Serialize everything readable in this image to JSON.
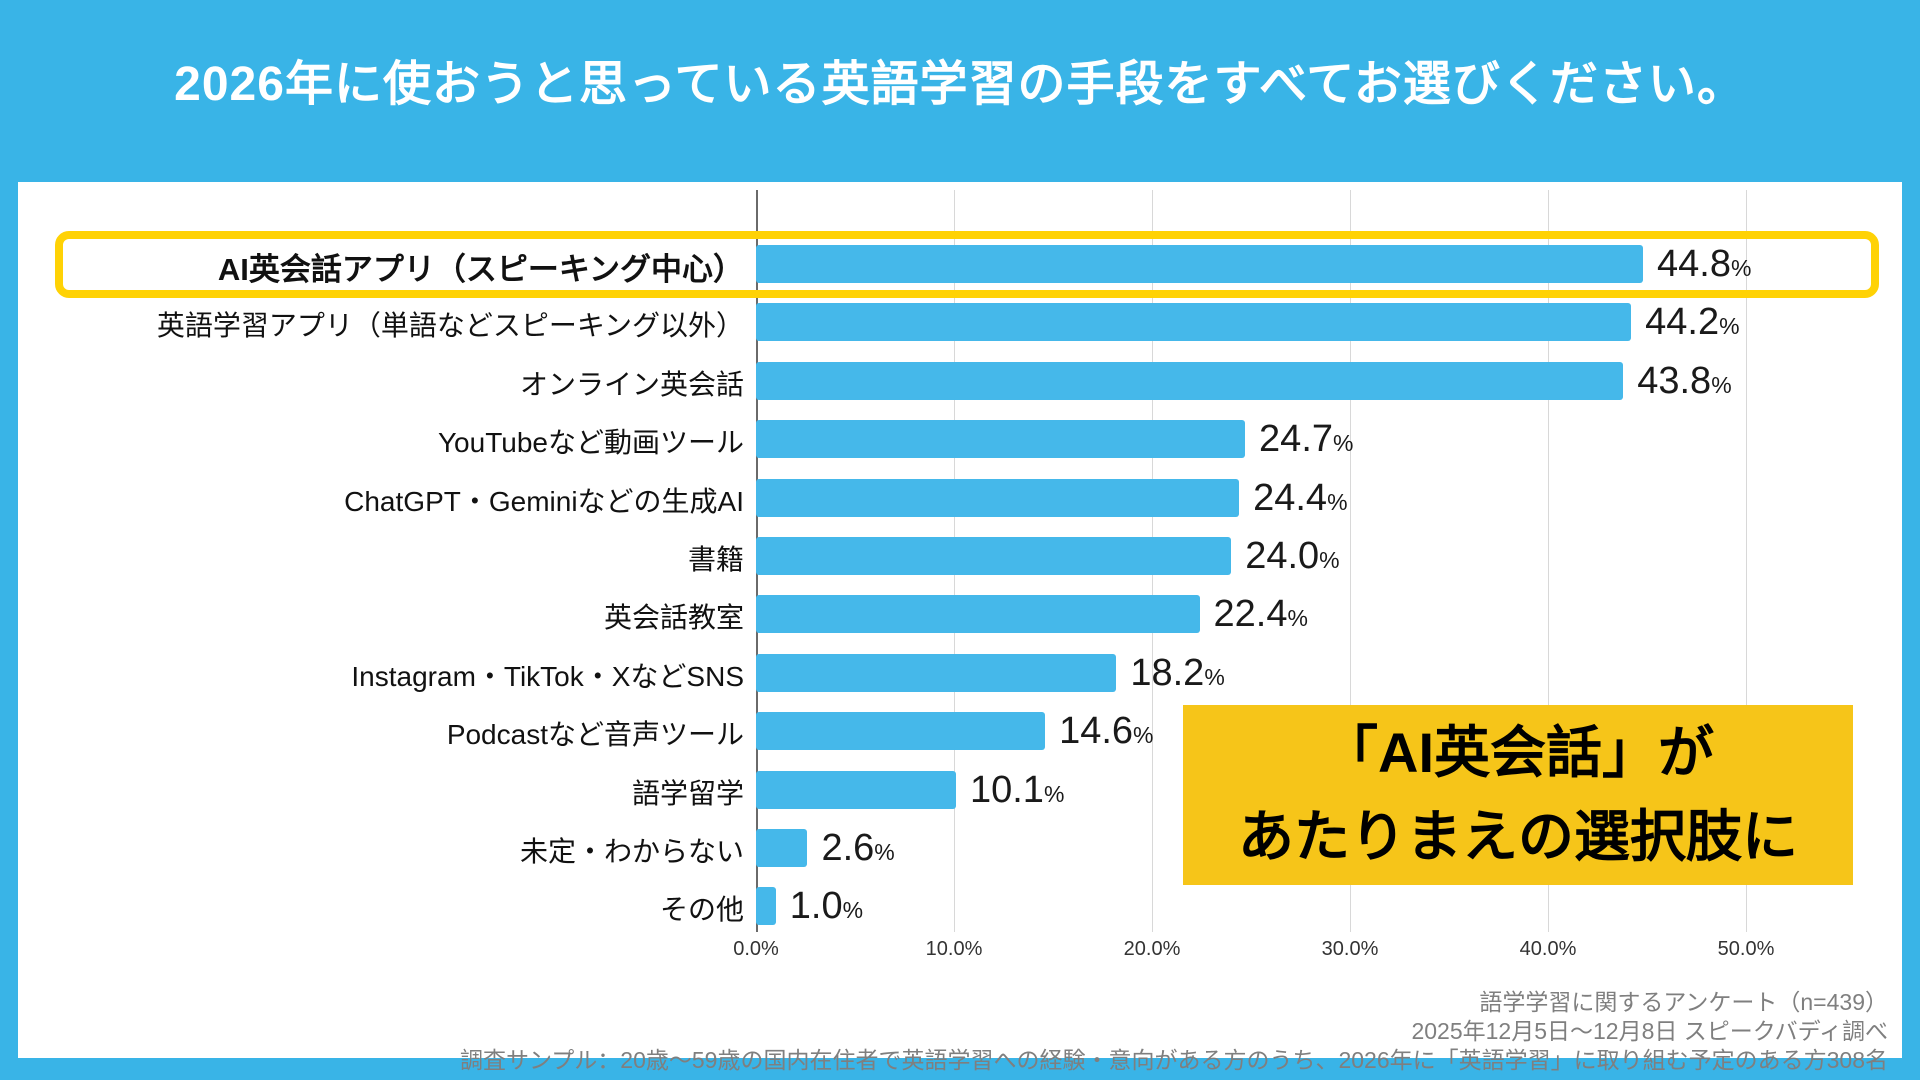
{
  "title": "2026年に使おうと思っている英語学習の手段をすべてお選びください。",
  "colors": {
    "background_blue": "#39B4E7",
    "bar_blue": "#45B8EA",
    "highlight_yellow": "#FFD205",
    "callout_yellow": "#F6C519",
    "card_white": "#FFFFFF",
    "footer_gray": "#7F7F7F"
  },
  "chart_data": {
    "type": "bar",
    "orientation": "horizontal",
    "title": "2026年に使おうと思っている英語学習の手段をすべてお選びください。",
    "categories": [
      "AI英会話アプリ（スピーキング中心）",
      "英語学習アプリ（単語などスピーキング以外）",
      "オンライン英会話",
      "YouTubeなど動画ツール",
      "ChatGPT・Geminiなどの生成AI",
      "書籍",
      "英会話教室",
      "Instagram・TikTok・XなどSNS",
      "Podcastなど音声ツール",
      "語学留学",
      "未定・わからない",
      "その他"
    ],
    "values": [
      44.8,
      44.2,
      43.8,
      24.7,
      24.4,
      24.0,
      22.4,
      18.2,
      14.6,
      10.1,
      2.6,
      1.0
    ],
    "unit": "%",
    "highlight_index": 0,
    "axis": {
      "ticks": [
        "0.0%",
        "10.0%",
        "20.0%",
        "30.0%",
        "40.0%",
        "50.0%"
      ],
      "xlim": [
        0,
        53
      ],
      "grid": true
    },
    "legend": null
  },
  "callout": {
    "line1": "「AI英会話」が",
    "line2": "あたりまえの選択肢に"
  },
  "footer": {
    "line1": "語学学習に関するアンケート（n=439）",
    "line2": "2025年12月5日～12月8日 スピークバディ調べ",
    "line3": "調査サンプル：20歳～59歳の国内在住者で英語学習への経験・意向がある方のうち、2026年に「英語学習」に取り組む予定のある方308名"
  }
}
